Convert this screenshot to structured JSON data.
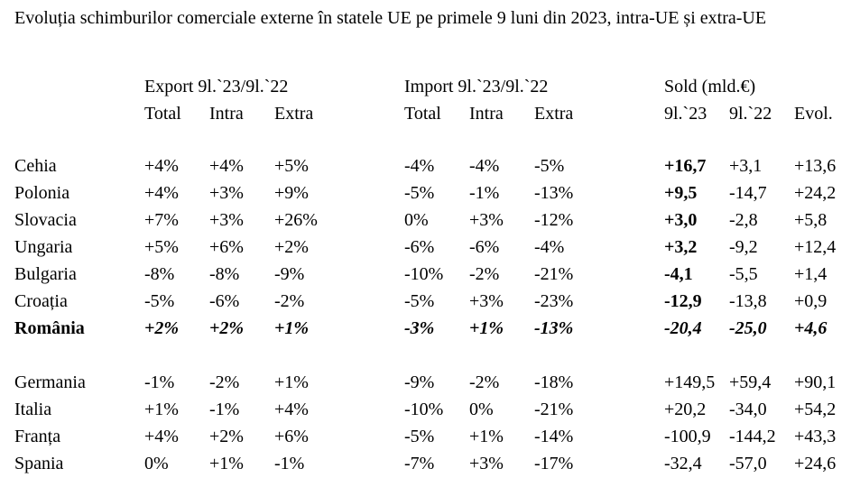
{
  "title": "Evoluția schimburilor comerciale externe în statele UE pe primele 9 luni din 2023, intra-UE și extra-UE",
  "groups": {
    "export": "Export 9l.`23/9l.`22",
    "import": "Import 9l.`23/9l.`22",
    "sold": "Sold (mld.€)"
  },
  "subheaders": {
    "exp_total": "Total",
    "exp_intra": "Intra",
    "exp_extra": "Extra",
    "imp_total": "Total",
    "imp_intra": "Intra",
    "imp_extra": "Extra",
    "sold_23": "9l.`23",
    "sold_22": "9l.`22",
    "sold_evol": "Evol."
  },
  "rows": [
    {
      "name": "Cehia",
      "cells": [
        "+4%",
        "+4%",
        "+5%",
        "-4%",
        "-4%",
        "-5%",
        "+16,7",
        "+3,1",
        "+13,6"
      ]
    },
    {
      "name": "Polonia",
      "cells": [
        "+4%",
        "+3%",
        "+9%",
        "-5%",
        "-1%",
        "-13%",
        "+9,5",
        "-14,7",
        "+24,2"
      ]
    },
    {
      "name": "Slovacia",
      "cells": [
        "+7%",
        "+3%",
        "+26%",
        "0%",
        "+3%",
        "-12%",
        "+3,0",
        "-2,8",
        "+5,8"
      ]
    },
    {
      "name": "Ungaria",
      "cells": [
        "+5%",
        "+6%",
        "+2%",
        "-6%",
        "-6%",
        "-4%",
        "+3,2",
        "-9,2",
        "+12,4"
      ]
    },
    {
      "name": "Bulgaria",
      "cells": [
        "-8%",
        "-8%",
        "-9%",
        "-10%",
        "-2%",
        "-21%",
        "-4,1",
        "-5,5",
        "+1,4"
      ]
    },
    {
      "name": "Croația",
      "cells": [
        "-5%",
        "-6%",
        "-2%",
        "-5%",
        "+3%",
        "-23%",
        "-12,9",
        "-13,8",
        "+0,9"
      ]
    },
    {
      "name": "România",
      "cells": [
        "+2%",
        "+2%",
        "+1%",
        "-3%",
        "+1%",
        "-13%",
        "-20,4",
        "-25,0",
        "+4,6"
      ]
    },
    {
      "name": "Germania",
      "cells": [
        "-1%",
        "-2%",
        "+1%",
        "-9%",
        "-2%",
        "-18%",
        "+149,5",
        "+59,4",
        "+90,1"
      ]
    },
    {
      "name": "Italia",
      "cells": [
        "+1%",
        "-1%",
        "+4%",
        "-10%",
        "0%",
        "-21%",
        "+20,2",
        "-34,0",
        "+54,2"
      ]
    },
    {
      "name": "Franța",
      "cells": [
        "+4%",
        "+2%",
        "+6%",
        "-5%",
        "+1%",
        "-14%",
        "-100,9",
        "-144,2",
        "+43,3"
      ]
    },
    {
      "name": "Spania",
      "cells": [
        "0%",
        "+1%",
        "-1%",
        "-7%",
        "+3%",
        "-17%",
        "-32,4",
        "-57,0",
        "+24,6"
      ]
    }
  ]
}
